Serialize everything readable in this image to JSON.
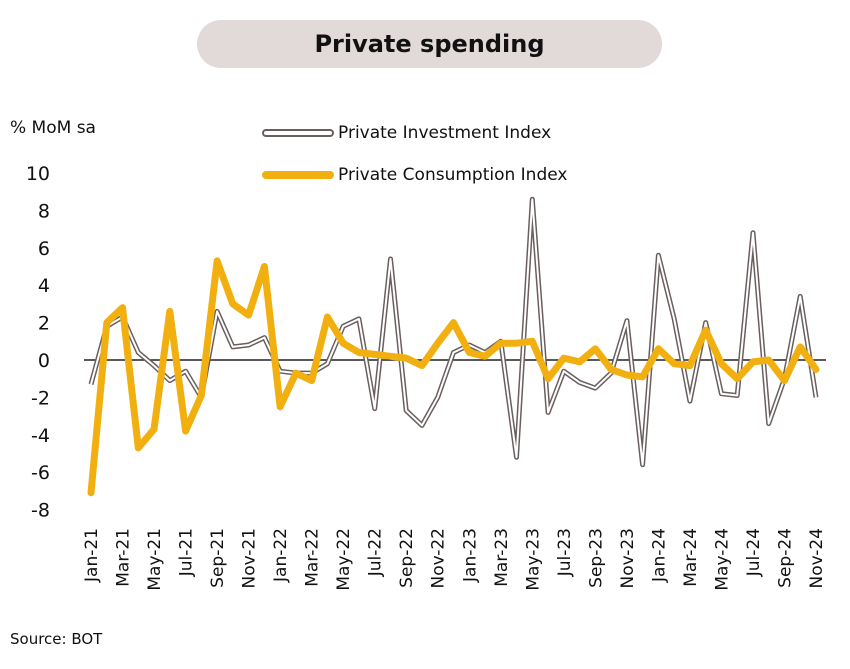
{
  "chart_data": {
    "type": "line",
    "title": "Private spending",
    "ylabel": "% MoM sa",
    "xlabel": "",
    "ylim": [
      -8,
      10
    ],
    "yticks": [
      10,
      8,
      6,
      4,
      2,
      0,
      -2,
      -4,
      -6,
      -8
    ],
    "grid": false,
    "legend_position": "top-center",
    "x": [
      "Jan-21",
      "Feb-21",
      "Mar-21",
      "Apr-21",
      "May-21",
      "Jun-21",
      "Jul-21",
      "Aug-21",
      "Sep-21",
      "Oct-21",
      "Nov-21",
      "Dec-21",
      "Jan-22",
      "Feb-22",
      "Mar-22",
      "Apr-22",
      "May-22",
      "Jun-22",
      "Jul-22",
      "Aug-22",
      "Sep-22",
      "Oct-22",
      "Nov-22",
      "Dec-22",
      "Jan-23",
      "Feb-23",
      "Mar-23",
      "Apr-23",
      "May-23",
      "Jun-23",
      "Jul-23",
      "Aug-23",
      "Sep-23",
      "Oct-23",
      "Nov-23",
      "Dec-23",
      "Jan-24",
      "Feb-24",
      "Mar-24",
      "Apr-24",
      "May-24",
      "Jun-24",
      "Jul-24",
      "Aug-24",
      "Sep-24",
      "Oct-24",
      "Nov-24"
    ],
    "xtick_labels": [
      "Jan-21",
      "Mar-21",
      "May-21",
      "Jul-21",
      "Sep-21",
      "Nov-21",
      "Jan-22",
      "Mar-22",
      "May-22",
      "Jul-22",
      "Sep-22",
      "Nov-22",
      "Jan-23",
      "Mar-23",
      "May-23",
      "Jul-23",
      "Sep-23",
      "Nov-23",
      "Jan-24",
      "Mar-24",
      "May-24",
      "Jul-24",
      "Sep-24",
      "Nov-24"
    ],
    "series": [
      {
        "name": "Private Investment Index",
        "color": "#6b5e5e",
        "style": "double-line",
        "values": [
          -1.3,
          1.8,
          2.3,
          0.4,
          -0.3,
          -1.1,
          -0.6,
          -2.0,
          2.6,
          0.7,
          0.8,
          1.2,
          -0.6,
          -0.7,
          -0.7,
          -0.2,
          1.8,
          2.2,
          -2.6,
          5.4,
          -2.7,
          -3.5,
          -2.0,
          0.4,
          0.8,
          0.4,
          1.0,
          -5.2,
          8.6,
          -2.8,
          -0.6,
          -1.2,
          -1.5,
          -0.7,
          2.1,
          -5.6,
          5.6,
          2.2,
          -2.2,
          2.0,
          -1.8,
          -1.9,
          6.8,
          -3.4,
          -1.0,
          3.4,
          -2.0
        ]
      },
      {
        "name": "Private Consumption Index",
        "color": "#f2b010",
        "style": "thick-line",
        "values": [
          -7.1,
          2.0,
          2.8,
          -4.7,
          -3.7,
          2.6,
          -3.8,
          -1.9,
          5.3,
          3.0,
          2.4,
          5.0,
          -2.5,
          -0.7,
          -1.1,
          2.3,
          0.9,
          0.4,
          0.3,
          0.2,
          0.1,
          -0.3,
          0.9,
          2.0,
          0.4,
          0.2,
          0.9,
          0.9,
          1.0,
          -1.0,
          0.1,
          -0.1,
          0.6,
          -0.5,
          -0.8,
          -0.9,
          0.6,
          -0.2,
          -0.3,
          1.6,
          -0.2,
          -1.0,
          -0.1,
          0.0,
          -1.1,
          0.7,
          -0.5
        ]
      }
    ],
    "source": "Source: BOT"
  }
}
